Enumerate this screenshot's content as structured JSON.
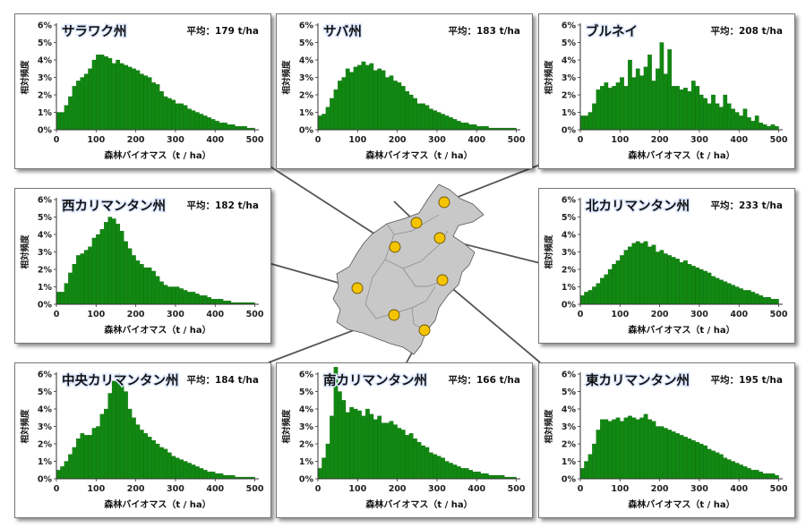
{
  "common": {
    "xlabel": "森林バイオマス（t / ha）",
    "ylabel": "相対頻度",
    "x_ticks": [
      "0",
      "100",
      "200",
      "300",
      "400",
      "500"
    ],
    "y_ticks": [
      "0%",
      "1%",
      "2%",
      "3%",
      "4%",
      "5%",
      "6%"
    ],
    "bar_color": "#118811",
    "bar_stroke": "#0a5a0a",
    "marker_color": "#f5c400",
    "map_color": "#c8c8c8"
  },
  "chart_data": [
    {
      "type": "bar",
      "title": "サラワク州",
      "mean_label": "平均：179 t/ha",
      "xlim": [
        0,
        510
      ],
      "ylim": [
        0,
        6
      ],
      "bin_width": 10,
      "values": [
        1.0,
        1.0,
        1.4,
        1.9,
        2.5,
        2.8,
        3.0,
        3.2,
        3.5,
        4.0,
        4.3,
        4.3,
        4.2,
        4.1,
        3.8,
        4.0,
        3.8,
        3.7,
        3.6,
        3.5,
        3.4,
        3.2,
        3.1,
        3.0,
        2.7,
        2.6,
        2.2,
        1.9,
        1.8,
        1.7,
        1.5,
        1.5,
        1.4,
        1.2,
        1.1,
        1.0,
        0.9,
        0.8,
        0.7,
        0.6,
        0.5,
        0.4,
        0.4,
        0.3,
        0.3,
        0.2,
        0.2,
        0.2,
        0.1,
        0.1
      ]
    },
    {
      "type": "bar",
      "title": "サバ州",
      "mean_label": "平均：183 t/ha",
      "xlim": [
        0,
        510
      ],
      "ylim": [
        0,
        6
      ],
      "bin_width": 10,
      "values": [
        0.8,
        0.9,
        1.3,
        1.8,
        2.3,
        2.8,
        3.0,
        3.5,
        3.3,
        3.6,
        3.7,
        3.9,
        3.7,
        3.8,
        3.4,
        3.5,
        3.4,
        3.0,
        3.1,
        2.8,
        2.7,
        2.5,
        2.2,
        2.0,
        1.8,
        1.5,
        1.5,
        1.4,
        1.2,
        1.1,
        1.0,
        0.9,
        0.8,
        0.7,
        0.6,
        0.5,
        0.4,
        0.4,
        0.3,
        0.3,
        0.2,
        0.2,
        0.2,
        0.1,
        0.1,
        0.1,
        0.1,
        0.1,
        0.1,
        0.1
      ]
    },
    {
      "type": "bar",
      "title": "ブルネイ",
      "mean_label": "平均：208 t/ha",
      "xlim": [
        0,
        510
      ],
      "ylim": [
        0,
        6
      ],
      "bin_width": 10,
      "values": [
        0.8,
        0.8,
        1.0,
        1.5,
        2.3,
        2.5,
        2.7,
        2.4,
        2.5,
        2.7,
        3.0,
        2.5,
        4.0,
        3.0,
        3.5,
        3.1,
        3.6,
        4.3,
        2.8,
        3.5,
        5.0,
        3.2,
        4.6,
        2.5,
        2.5,
        2.3,
        2.4,
        2.2,
        2.8,
        2.5,
        2.0,
        1.8,
        1.5,
        2.0,
        1.5,
        1.3,
        2.0,
        1.5,
        1.2,
        1.0,
        0.8,
        1.2,
        0.7,
        0.5,
        0.8,
        0.4,
        0.3,
        0.2,
        0.3,
        0.2
      ]
    },
    {
      "type": "bar",
      "title": "西カリマンタン州",
      "mean_label": "平均：182 t/ha",
      "xlim": [
        0,
        510
      ],
      "ylim": [
        0,
        6
      ],
      "bin_width": 10,
      "values": [
        0.7,
        0.7,
        1.2,
        1.8,
        2.3,
        2.8,
        2.9,
        3.1,
        3.3,
        3.8,
        4.0,
        4.3,
        4.7,
        5.0,
        4.9,
        4.6,
        4.2,
        3.6,
        3.2,
        2.8,
        2.5,
        2.3,
        2.1,
        2.1,
        1.9,
        1.6,
        1.3,
        1.1,
        1.0,
        1.0,
        1.0,
        0.9,
        0.8,
        0.7,
        0.7,
        0.6,
        0.5,
        0.5,
        0.4,
        0.3,
        0.3,
        0.3,
        0.2,
        0.2,
        0.1,
        0.1,
        0.1,
        0.1,
        0.1,
        0.1
      ]
    },
    {
      "type": "bar",
      "title": "北カリマンタン州",
      "mean_label": "平均：233 t/ha",
      "xlim": [
        0,
        510
      ],
      "ylim": [
        0,
        6
      ],
      "bin_width": 10,
      "values": [
        0.5,
        0.7,
        0.8,
        1.0,
        1.2,
        1.5,
        1.7,
        2.0,
        2.3,
        2.5,
        2.8,
        3.1,
        3.3,
        3.5,
        3.6,
        3.5,
        3.6,
        3.3,
        3.4,
        3.0,
        3.1,
        2.9,
        2.8,
        2.7,
        2.6,
        2.4,
        2.5,
        2.3,
        2.2,
        2.1,
        2.0,
        1.9,
        1.8,
        1.6,
        1.5,
        1.4,
        1.3,
        1.2,
        1.1,
        1.0,
        0.9,
        0.8,
        0.8,
        0.7,
        0.6,
        0.5,
        0.4,
        0.4,
        0.3,
        0.3
      ]
    },
    {
      "type": "bar",
      "title": "中央カリマンタン州",
      "mean_label": "平均：184 t/ha",
      "xlim": [
        0,
        510
      ],
      "ylim": [
        0,
        6
      ],
      "bin_width": 10,
      "values": [
        0.5,
        0.7,
        1.0,
        1.4,
        1.8,
        2.3,
        2.6,
        2.5,
        2.5,
        2.9,
        3.0,
        3.7,
        4.0,
        4.9,
        5.6,
        6.0,
        5.5,
        5.0,
        4.0,
        3.5,
        3.1,
        2.8,
        2.6,
        2.4,
        2.2,
        2.0,
        1.8,
        1.7,
        1.5,
        1.3,
        1.2,
        1.1,
        1.0,
        0.9,
        0.8,
        0.7,
        0.6,
        0.5,
        0.4,
        0.4,
        0.3,
        0.3,
        0.2,
        0.2,
        0.2,
        0.1,
        0.1,
        0.1,
        0.1,
        0.1
      ]
    },
    {
      "type": "bar",
      "title": "南カリマンタン州",
      "mean_label": "平均：166 t/ha",
      "xlim": [
        0,
        510
      ],
      "ylim": [
        0,
        6
      ],
      "bin_width": 10,
      "values": [
        0.6,
        1.2,
        2.0,
        3.6,
        6.4,
        5.0,
        4.5,
        3.8,
        4.1,
        4.0,
        3.9,
        3.6,
        4.0,
        3.7,
        3.4,
        3.6,
        3.2,
        3.2,
        3.3,
        3.1,
        2.9,
        2.8,
        2.5,
        2.6,
        2.3,
        2.1,
        1.9,
        1.8,
        1.5,
        1.4,
        1.3,
        1.2,
        1.0,
        0.9,
        0.8,
        0.7,
        0.6,
        0.6,
        0.5,
        0.4,
        0.4,
        0.3,
        0.3,
        0.2,
        0.2,
        0.2,
        0.2,
        0.1,
        0.1,
        0.1
      ]
    },
    {
      "type": "bar",
      "title": "東カリマンタン州",
      "mean_label": "平均：195 t/ha",
      "xlim": [
        0,
        510
      ],
      "ylim": [
        0,
        6
      ],
      "bin_width": 10,
      "values": [
        0.6,
        1.0,
        1.4,
        2.0,
        2.8,
        3.4,
        3.4,
        3.3,
        3.4,
        3.5,
        3.3,
        3.5,
        3.6,
        3.5,
        3.4,
        3.5,
        3.7,
        3.4,
        3.3,
        3.0,
        3.0,
        2.9,
        2.8,
        2.7,
        2.6,
        2.5,
        2.4,
        2.3,
        2.2,
        2.1,
        2.0,
        1.9,
        1.7,
        1.6,
        1.5,
        1.4,
        1.2,
        1.1,
        1.0,
        0.9,
        0.8,
        0.7,
        0.6,
        0.5,
        0.5,
        0.4,
        0.3,
        0.3,
        0.3,
        0.2
      ]
    }
  ]
}
